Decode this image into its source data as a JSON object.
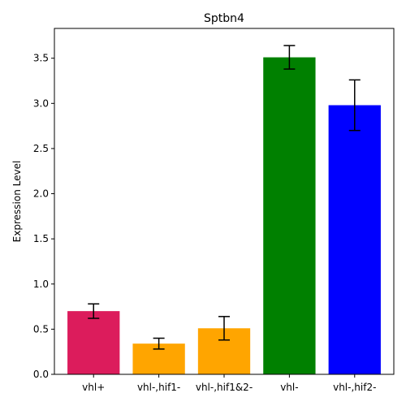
{
  "chart_data": {
    "type": "bar",
    "title": "Sptbn4",
    "xlabel": "",
    "ylabel": "Expression Level",
    "categories": [
      "vhl+",
      "vhl-,hif1-",
      "vhl-,hif1&2-",
      "vhl-",
      "vhl-,hif2-"
    ],
    "values": [
      0.7,
      0.34,
      0.51,
      3.51,
      2.98
    ],
    "errors": [
      0.08,
      0.06,
      0.13,
      0.13,
      0.28
    ],
    "colors": [
      "#dc1c5c",
      "#ffa500",
      "#ffa500",
      "#008000",
      "#0000ff"
    ],
    "ylim": [
      0,
      3.83
    ],
    "yticks": [
      0.0,
      0.5,
      1.0,
      1.5,
      2.0,
      2.5,
      3.0,
      3.5
    ],
    "ytick_labels": [
      "0.0",
      "0.5",
      "1.0",
      "1.5",
      "2.0",
      "2.5",
      "3.0",
      "3.5"
    ],
    "grid": false,
    "legend": "none"
  }
}
